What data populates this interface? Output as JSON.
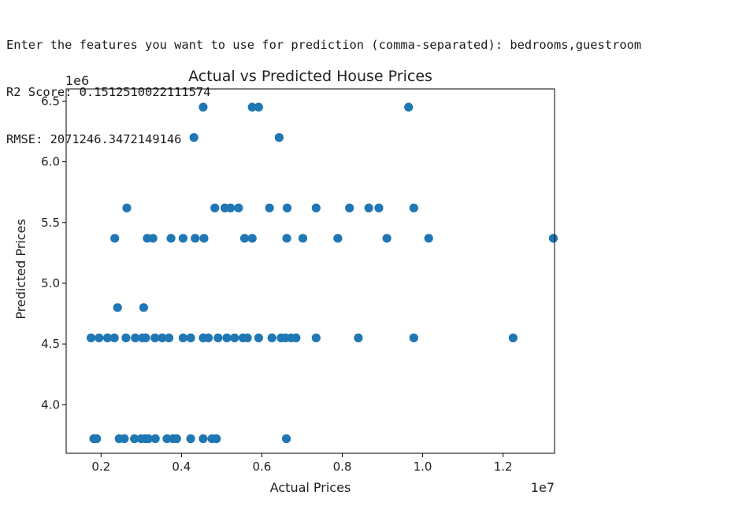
{
  "console": {
    "line1": "Enter the features you want to use for prediction (comma-separated): bedrooms,guestroom",
    "line2": "R2 Score: 0.1512510022111574",
    "line3": "RMSE: 2071246.3472149146"
  },
  "chart_data": {
    "type": "scatter",
    "title": "Actual vs Predicted House Prices",
    "xlabel": "Actual Prices",
    "ylabel": "Predicted Prices",
    "x_offset_label": "1e7",
    "y_offset_label": "1e6",
    "x_scale": 10000000,
    "y_scale": 1000000,
    "xlim": [
      0.1132,
      1.3281
    ],
    "ylim": [
      3.6,
      6.6
    ],
    "x_ticks": [
      0.2,
      0.4,
      0.6,
      0.8,
      1.0,
      1.2
    ],
    "x_tick_labels": [
      "0.2",
      "0.4",
      "0.6",
      "0.8",
      "1.0",
      "1.2"
    ],
    "y_ticks": [
      4.0,
      4.5,
      5.0,
      5.5,
      6.0,
      6.5
    ],
    "y_tick_labels": [
      "4.0",
      "4.5",
      "5.0",
      "5.5",
      "6.0",
      "6.5"
    ],
    "grid": false,
    "legend": "none",
    "marker_color": "#1f77b4",
    "points": [
      [
        0.454,
        6.45
      ],
      [
        0.576,
        6.45
      ],
      [
        0.592,
        6.45
      ],
      [
        0.965,
        6.45
      ],
      [
        0.431,
        6.2
      ],
      [
        0.643,
        6.2
      ],
      [
        0.264,
        5.62
      ],
      [
        0.483,
        5.62
      ],
      [
        0.508,
        5.62
      ],
      [
        0.522,
        5.62
      ],
      [
        0.542,
        5.62
      ],
      [
        0.619,
        5.62
      ],
      [
        0.663,
        5.62
      ],
      [
        0.735,
        5.62
      ],
      [
        0.818,
        5.62
      ],
      [
        0.866,
        5.62
      ],
      [
        0.891,
        5.62
      ],
      [
        0.978,
        5.62
      ],
      [
        0.234,
        5.37
      ],
      [
        0.315,
        5.37
      ],
      [
        0.329,
        5.37
      ],
      [
        0.374,
        5.37
      ],
      [
        0.404,
        5.37
      ],
      [
        0.434,
        5.37
      ],
      [
        0.456,
        5.37
      ],
      [
        0.557,
        5.37
      ],
      [
        0.576,
        5.37
      ],
      [
        0.662,
        5.37
      ],
      [
        0.702,
        5.37
      ],
      [
        0.789,
        5.37
      ],
      [
        0.911,
        5.37
      ],
      [
        1.015,
        5.37
      ],
      [
        1.325,
        5.37
      ],
      [
        0.241,
        4.8
      ],
      [
        0.306,
        4.8
      ],
      [
        0.175,
        4.55
      ],
      [
        0.195,
        4.55
      ],
      [
        0.216,
        4.55
      ],
      [
        0.233,
        4.55
      ],
      [
        0.262,
        4.55
      ],
      [
        0.285,
        4.55
      ],
      [
        0.303,
        4.55
      ],
      [
        0.311,
        4.55
      ],
      [
        0.334,
        4.55
      ],
      [
        0.352,
        4.55
      ],
      [
        0.369,
        4.55
      ],
      [
        0.404,
        4.55
      ],
      [
        0.423,
        4.55
      ],
      [
        0.454,
        4.55
      ],
      [
        0.467,
        4.55
      ],
      [
        0.491,
        4.55
      ],
      [
        0.513,
        4.55
      ],
      [
        0.532,
        4.55
      ],
      [
        0.553,
        4.55
      ],
      [
        0.564,
        4.55
      ],
      [
        0.592,
        4.55
      ],
      [
        0.625,
        4.55
      ],
      [
        0.648,
        4.55
      ],
      [
        0.659,
        4.55
      ],
      [
        0.673,
        4.55
      ],
      [
        0.685,
        4.55
      ],
      [
        0.735,
        4.55
      ],
      [
        0.84,
        4.55
      ],
      [
        0.978,
        4.55
      ],
      [
        1.225,
        4.55
      ],
      [
        0.182,
        3.72
      ],
      [
        0.189,
        3.72
      ],
      [
        0.245,
        3.72
      ],
      [
        0.258,
        3.72
      ],
      [
        0.283,
        3.72
      ],
      [
        0.3,
        3.72
      ],
      [
        0.311,
        3.72
      ],
      [
        0.318,
        3.72
      ],
      [
        0.335,
        3.72
      ],
      [
        0.364,
        3.72
      ],
      [
        0.379,
        3.72
      ],
      [
        0.388,
        3.72
      ],
      [
        0.423,
        3.72
      ],
      [
        0.454,
        3.72
      ],
      [
        0.476,
        3.72
      ],
      [
        0.487,
        3.72
      ],
      [
        0.661,
        3.72
      ]
    ]
  }
}
